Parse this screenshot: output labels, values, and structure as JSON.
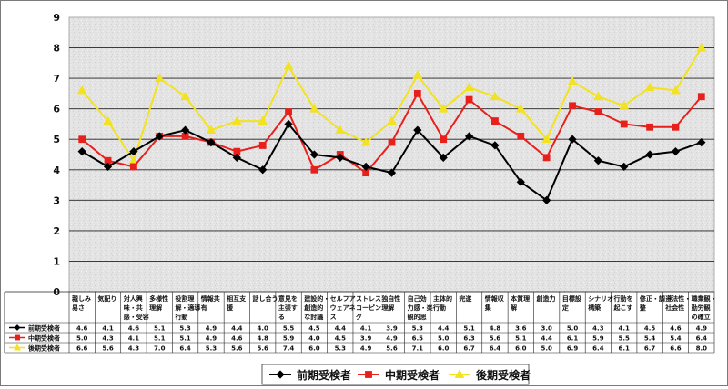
{
  "chart_data": {
    "type": "line",
    "ylim": [
      0,
      9
    ],
    "yticks": [
      "0",
      "1",
      "2",
      "3",
      "4",
      "5",
      "6",
      "7",
      "8",
      "9"
    ],
    "grid": true,
    "legend_position": "bottom-center",
    "categories": [
      "親しみ\n易さ",
      "気配り",
      "対人興\n味・共\n感・受容",
      "多様性\n理解",
      "役割理\n解・適導\n行動",
      "情報共\n有",
      "相互支\n援",
      "話し合う",
      "意見を\n主張す\nる",
      "建設的・\n創造的\nな討議",
      "セルフア\nウェアネ\nス",
      "ストレス\nコーピン\nグ",
      "独自性\n理解",
      "自己効\n力感・楽\n観的思",
      "主体的\n行動",
      "完遂",
      "情報収\n集",
      "本質理\n解",
      "創造力",
      "目標設\n定",
      "シナリオ\n構築",
      "行動を\n起こす",
      "修正・調\n整",
      "遵法性・\n社会性",
      "職業観・\n勤労観\nの確立"
    ],
    "series": [
      {
        "name": "前期受検者",
        "color": "#000000",
        "marker": "diamond",
        "values": [
          4.6,
          4.1,
          4.6,
          5.1,
          5.3,
          4.9,
          4.4,
          4.0,
          5.5,
          4.5,
          4.4,
          4.1,
          3.9,
          5.3,
          4.4,
          5.1,
          4.8,
          3.6,
          3.0,
          5.0,
          4.3,
          4.1,
          4.5,
          4.6,
          4.9
        ]
      },
      {
        "name": "中期受検者",
        "color": "#e8201c",
        "marker": "square",
        "values": [
          5.0,
          4.3,
          4.1,
          5.1,
          5.1,
          4.9,
          4.6,
          4.8,
          5.9,
          4.0,
          4.5,
          3.9,
          4.9,
          6.5,
          5.0,
          6.3,
          5.6,
          5.1,
          4.4,
          6.1,
          5.9,
          5.5,
          5.4,
          5.4,
          6.4
        ]
      },
      {
        "name": "後期受検者",
        "color": "#f3e21f",
        "marker": "triangle",
        "values": [
          6.6,
          5.6,
          4.3,
          7.0,
          6.4,
          5.3,
          5.6,
          5.6,
          7.4,
          6.0,
          5.3,
          4.9,
          5.6,
          7.1,
          6.0,
          6.7,
          6.4,
          6.0,
          5.0,
          6.9,
          6.4,
          6.1,
          6.7,
          6.6,
          8.0
        ]
      }
    ]
  }
}
